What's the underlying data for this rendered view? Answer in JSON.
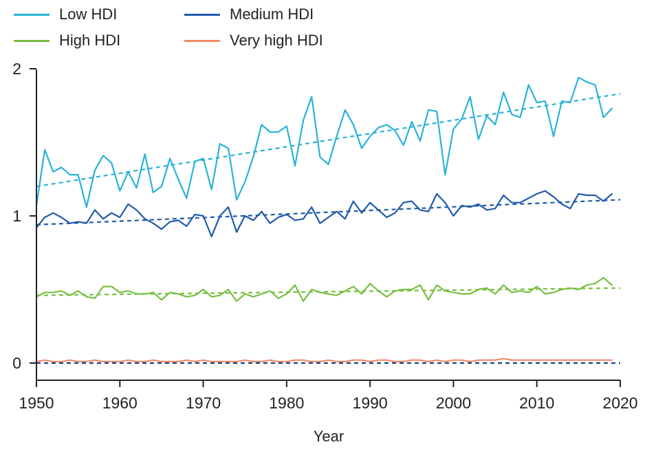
{
  "chart_data": {
    "type": "line",
    "xlabel": "Year",
    "ylabel": "",
    "xlim": [
      1950,
      2020
    ],
    "ylim": [
      -0.12,
      2.0
    ],
    "x_ticks": [
      "1950",
      "1960",
      "1970",
      "1980",
      "1990",
      "2000",
      "2010",
      "2020"
    ],
    "y_ticks": [
      "0",
      "1",
      "2"
    ],
    "legend_position": "top-left",
    "x": [
      1950,
      1951,
      1952,
      1953,
      1954,
      1955,
      1956,
      1957,
      1958,
      1959,
      1960,
      1961,
      1962,
      1963,
      1964,
      1965,
      1966,
      1967,
      1968,
      1969,
      1970,
      1971,
      1972,
      1973,
      1974,
      1975,
      1976,
      1977,
      1978,
      1979,
      1980,
      1981,
      1982,
      1983,
      1984,
      1985,
      1986,
      1987,
      1988,
      1989,
      1990,
      1991,
      1992,
      1993,
      1994,
      1995,
      1996,
      1997,
      1998,
      1999,
      2000,
      2001,
      2002,
      2003,
      2004,
      2005,
      2006,
      2007,
      2008,
      2009,
      2010,
      2011,
      2012,
      2013,
      2014,
      2015,
      2016,
      2017,
      2018,
      2019
    ],
    "series": [
      {
        "name": "Low HDI",
        "color": "#29b2d8",
        "values": [
          1.07,
          1.45,
          1.3,
          1.33,
          1.28,
          1.28,
          1.06,
          1.31,
          1.41,
          1.36,
          1.17,
          1.3,
          1.19,
          1.42,
          1.16,
          1.2,
          1.39,
          1.25,
          1.12,
          1.37,
          1.39,
          1.18,
          1.49,
          1.46,
          1.11,
          1.23,
          1.4,
          1.62,
          1.57,
          1.57,
          1.61,
          1.34,
          1.65,
          1.81,
          1.4,
          1.35,
          1.54,
          1.72,
          1.62,
          1.46,
          1.54,
          1.6,
          1.62,
          1.58,
          1.48,
          1.64,
          1.51,
          1.72,
          1.71,
          1.28,
          1.59,
          1.66,
          1.81,
          1.52,
          1.68,
          1.62,
          1.84,
          1.69,
          1.67,
          1.89,
          1.77,
          1.78,
          1.54,
          1.78,
          1.77,
          1.94,
          1.91,
          1.89,
          1.67,
          1.73
        ],
        "trend": [
          1.2,
          1.83
        ]
      },
      {
        "name": "Medium HDI",
        "color": "#1f5aa8",
        "values": [
          0.92,
          0.99,
          1.02,
          0.99,
          0.95,
          0.96,
          0.95,
          1.04,
          0.98,
          1.02,
          0.99,
          1.08,
          1.04,
          0.98,
          0.95,
          0.91,
          0.96,
          0.97,
          0.93,
          1.01,
          1.0,
          0.86,
          1.0,
          1.06,
          0.89,
          1.0,
          0.97,
          1.03,
          0.95,
          0.99,
          1.01,
          0.97,
          0.98,
          1.06,
          0.95,
          0.99,
          1.03,
          0.98,
          1.1,
          1.02,
          1.09,
          1.04,
          0.99,
          1.02,
          1.09,
          1.1,
          1.04,
          1.03,
          1.15,
          1.09,
          1.0,
          1.07,
          1.06,
          1.08,
          1.04,
          1.05,
          1.14,
          1.09,
          1.09,
          1.12,
          1.15,
          1.17,
          1.13,
          1.08,
          1.05,
          1.15,
          1.14,
          1.14,
          1.1,
          1.15
        ],
        "trend": [
          0.94,
          1.11
        ]
      },
      {
        "name": "High HDI",
        "color": "#77bf3f",
        "values": [
          0.45,
          0.48,
          0.48,
          0.49,
          0.46,
          0.49,
          0.45,
          0.44,
          0.52,
          0.52,
          0.48,
          0.49,
          0.47,
          0.47,
          0.48,
          0.43,
          0.48,
          0.47,
          0.45,
          0.46,
          0.5,
          0.45,
          0.46,
          0.5,
          0.42,
          0.47,
          0.45,
          0.47,
          0.49,
          0.44,
          0.47,
          0.53,
          0.42,
          0.5,
          0.48,
          0.47,
          0.46,
          0.49,
          0.52,
          0.47,
          0.54,
          0.49,
          0.45,
          0.49,
          0.5,
          0.5,
          0.53,
          0.43,
          0.53,
          0.49,
          0.48,
          0.47,
          0.47,
          0.5,
          0.51,
          0.47,
          0.53,
          0.48,
          0.49,
          0.48,
          0.52,
          0.47,
          0.48,
          0.5,
          0.51,
          0.5,
          0.53,
          0.54,
          0.58,
          0.53
        ],
        "trend": [
          0.46,
          0.51
        ]
      },
      {
        "name": "Very high HDI",
        "color": "#f08a65",
        "values": [
          0.01,
          0.02,
          0.01,
          0.01,
          0.02,
          0.01,
          0.01,
          0.02,
          0.01,
          0.01,
          0.01,
          0.02,
          0.01,
          0.01,
          0.02,
          0.01,
          0.01,
          0.01,
          0.02,
          0.01,
          0.02,
          0.01,
          0.01,
          0.01,
          0.01,
          0.02,
          0.01,
          0.01,
          0.02,
          0.01,
          0.01,
          0.02,
          0.02,
          0.01,
          0.01,
          0.02,
          0.01,
          0.01,
          0.02,
          0.02,
          0.01,
          0.02,
          0.02,
          0.01,
          0.01,
          0.02,
          0.02,
          0.01,
          0.02,
          0.01,
          0.02,
          0.02,
          0.01,
          0.02,
          0.02,
          0.02,
          0.03,
          0.02,
          0.02,
          0.02,
          0.02,
          0.02,
          0.02,
          0.02,
          0.02,
          0.02,
          0.02,
          0.02,
          0.02,
          0.02
        ],
        "trend": [
          0.0,
          0.0
        ]
      }
    ]
  }
}
